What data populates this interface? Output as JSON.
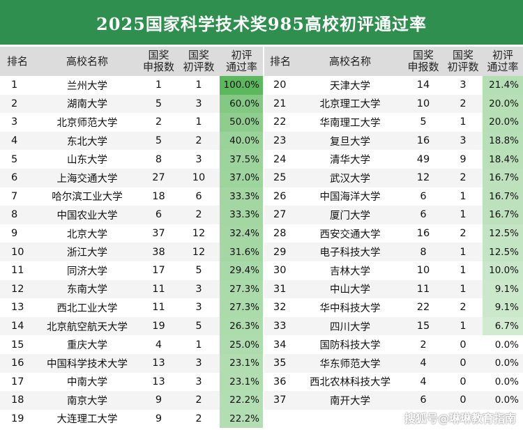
{
  "title": "2025国家科学技术奖985高校初评通过率",
  "headers": {
    "rank": "排名",
    "school": "高校名称",
    "applied": [
      "国奖",
      "申报数"
    ],
    "passed": [
      "国奖",
      "初评数"
    ],
    "rate": [
      "初评",
      "通过率"
    ]
  },
  "left_rows": [
    [
      "1",
      "兰州大学",
      "1",
      "1",
      "100.0%"
    ],
    [
      "2",
      "湖南大学",
      "5",
      "3",
      "60.0%"
    ],
    [
      "3",
      "北京师范大学",
      "2",
      "1",
      "50.0%"
    ],
    [
      "4",
      "东北大学",
      "5",
      "2",
      "40.0%"
    ],
    [
      "5",
      "山东大学",
      "8",
      "3",
      "37.5%"
    ],
    [
      "6",
      "上海交通大学",
      "27",
      "10",
      "37.0%"
    ],
    [
      "7",
      "哈尔滨工业大学",
      "18",
      "6",
      "33.3%"
    ],
    [
      "8",
      "中国农业大学",
      "6",
      "2",
      "33.3%"
    ],
    [
      "9",
      "北京大学",
      "37",
      "12",
      "32.4%"
    ],
    [
      "10",
      "浙江大学",
      "38",
      "12",
      "31.6%"
    ],
    [
      "11",
      "同济大学",
      "17",
      "5",
      "29.4%"
    ],
    [
      "12",
      "东南大学",
      "11",
      "3",
      "27.3%"
    ],
    [
      "13",
      "西北工业大学",
      "11",
      "3",
      "27.3%"
    ],
    [
      "14",
      "北京航空航天大学",
      "19",
      "5",
      "26.3%"
    ],
    [
      "15",
      "重庆大学",
      "4",
      "1",
      "25.0%"
    ],
    [
      "16",
      "中国科学技术大学",
      "13",
      "3",
      "23.1%"
    ],
    [
      "17",
      "中南大学",
      "13",
      "3",
      "23.1%"
    ],
    [
      "18",
      "南京大学",
      "9",
      "2",
      "22.2%"
    ],
    [
      "19",
      "大连理工大学",
      "9",
      "2",
      "22.2%"
    ]
  ],
  "right_rows": [
    [
      "20",
      "天津大学",
      "14",
      "3",
      "21.4%"
    ],
    [
      "21",
      "北京理工大学",
      "10",
      "2",
      "20.0%"
    ],
    [
      "22",
      "华南理工大学",
      "5",
      "1",
      "20.0%"
    ],
    [
      "23",
      "复旦大学",
      "16",
      "3",
      "18.8%"
    ],
    [
      "24",
      "清华大学",
      "49",
      "9",
      "18.4%"
    ],
    [
      "25",
      "武汉大学",
      "12",
      "2",
      "16.7%"
    ],
    [
      "26",
      "中国海洋大学",
      "6",
      "1",
      "16.7%"
    ],
    [
      "27",
      "厦门大学",
      "6",
      "1",
      "16.7%"
    ],
    [
      "28",
      "西安交通大学",
      "16",
      "2",
      "12.5%"
    ],
    [
      "29",
      "电子科技大学",
      "8",
      "1",
      "12.5%"
    ],
    [
      "30",
      "吉林大学",
      "10",
      "1",
      "10.0%"
    ],
    [
      "31",
      "中山大学",
      "11",
      "1",
      "9.1%"
    ],
    [
      "32",
      "华中科技大学",
      "22",
      "2",
      "9.1%"
    ],
    [
      "33",
      "四川大学",
      "15",
      "1",
      "6.7%"
    ],
    [
      "34",
      "国防科技大学",
      "2",
      "0",
      "0.0%"
    ],
    [
      "35",
      "华东师范大学",
      "4",
      "0",
      "0.0%"
    ],
    [
      "36",
      "西北农林科技大学",
      "4",
      "0",
      "0.0%"
    ],
    [
      "37",
      "南开大学",
      "6",
      "0",
      "0.0%"
    ]
  ],
  "watermark": "搜狐号@琳琳教育指南",
  "colors": {
    "title_bg": "#2f8f4e",
    "bar_max": "#5cb85c",
    "bar_min": "#eef7ee"
  }
}
